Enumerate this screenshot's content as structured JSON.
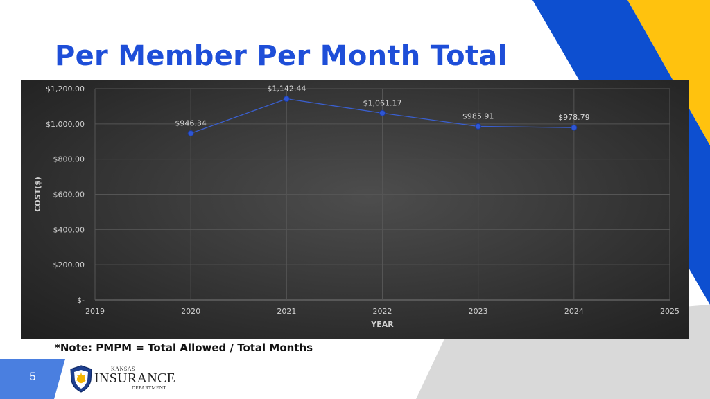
{
  "slide": {
    "title": "Per Member Per Month Total",
    "note": "*Note: PMPM = Total Allowed / Total Months",
    "page_number": "5"
  },
  "logo": {
    "line1": "Kansas",
    "line2": "Insurance",
    "line3": "Department"
  },
  "colors": {
    "title": "#1e4ed8",
    "accent_blue": "#0d4fd0",
    "accent_yellow": "#ffc20e",
    "accent_gray": "#d9d9d9",
    "page_tab": "#4a7fe0",
    "series_line": "#3a5fcf",
    "marker": "#2f56d4"
  },
  "chart_data": {
    "type": "line",
    "title": "",
    "xlabel": "YEAR",
    "ylabel": "COST($)",
    "xlim": [
      2019,
      2025
    ],
    "ylim": [
      0,
      1200
    ],
    "x_ticks": [
      "2019",
      "2020",
      "2021",
      "2022",
      "2023",
      "2024",
      "2025"
    ],
    "y_ticks": [
      "$-",
      "$200.00",
      "$400.00",
      "$600.00",
      "$800.00",
      "$1,000.00",
      "$1,200.00"
    ],
    "grid": true,
    "legend": "none",
    "series": [
      {
        "x": [
          2020,
          2021,
          2022,
          2023,
          2024
        ],
        "values": [
          946.34,
          1142.44,
          1061.17,
          985.91,
          978.79
        ],
        "data_labels": [
          "$946.34",
          "$1,142.44",
          "$1,061.17",
          "$985.91",
          "$978.79"
        ]
      }
    ]
  }
}
